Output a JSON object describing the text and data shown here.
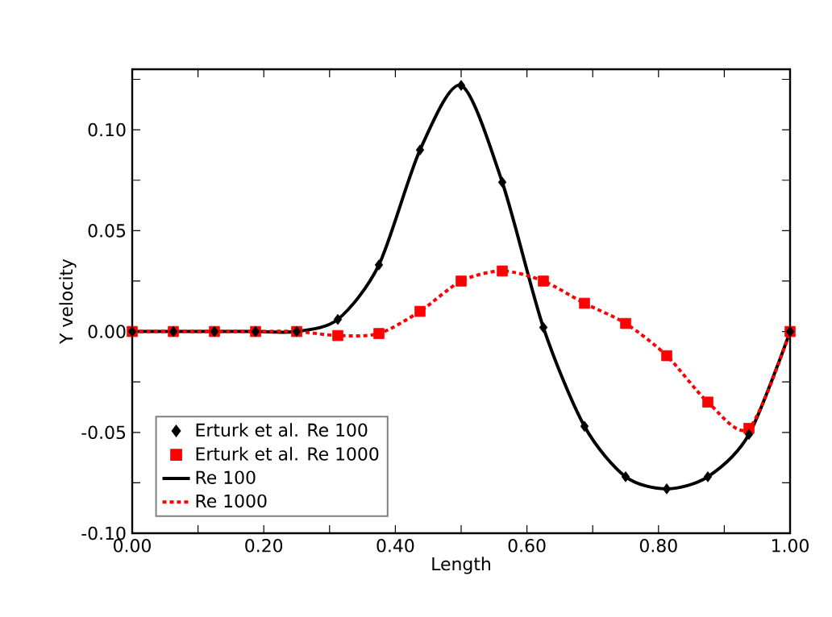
{
  "chart_data": {
    "type": "line",
    "xlabel": "Length",
    "ylabel": "Y velocity",
    "xlim": [
      0,
      1
    ],
    "ylim": [
      -0.1,
      0.13
    ],
    "xticks": [
      {
        "value": 0,
        "label": "0.00"
      },
      {
        "value": 0.1,
        "label": null
      },
      {
        "value": 0.2,
        "label": "0.20"
      },
      {
        "value": 0.3,
        "label": null
      },
      {
        "value": 0.4,
        "label": "0.40"
      },
      {
        "value": 0.5,
        "label": null
      },
      {
        "value": 0.6,
        "label": "0.60"
      },
      {
        "value": 0.7,
        "label": null
      },
      {
        "value": 0.8,
        "label": "0.80"
      },
      {
        "value": 0.9,
        "label": null
      },
      {
        "value": 1,
        "label": "1.00"
      }
    ],
    "yticks": [
      {
        "value": -0.1,
        "label": "-0.10"
      },
      {
        "value": -0.075,
        "label": null
      },
      {
        "value": -0.05,
        "label": "-0.05"
      },
      {
        "value": -0.025,
        "label": null
      },
      {
        "value": 0,
        "label": "0.00"
      },
      {
        "value": 0.025,
        "label": null
      },
      {
        "value": 0.05,
        "label": "0.05"
      },
      {
        "value": 0.075,
        "label": null
      },
      {
        "value": 0.1,
        "label": "0.10"
      },
      {
        "value": 0.125,
        "label": null
      }
    ],
    "legend": "bottom left",
    "grid": false,
    "series": [
      {
        "name": "Erturk et al. Re 100",
        "type": "scatter",
        "marker": "diamond",
        "color": "#000000",
        "x": [
          0,
          0.0625,
          0.125,
          0.1875,
          0.25,
          0.3125,
          0.375,
          0.4375,
          0.5,
          0.5625,
          0.625,
          0.6875,
          0.75,
          0.8125,
          0.875,
          0.9375,
          1
        ],
        "values": [
          0,
          0,
          0,
          0,
          0,
          0.006,
          0.033,
          0.09,
          0.122,
          0.074,
          0.002,
          -0.047,
          -0.072,
          -0.078,
          -0.072,
          -0.051,
          0
        ]
      },
      {
        "name": "Erturk et al. Re 1000",
        "type": "scatter",
        "marker": "square",
        "color": "#ff0000",
        "x": [
          0,
          0.0625,
          0.125,
          0.1875,
          0.25,
          0.3125,
          0.375,
          0.4375,
          0.5,
          0.5625,
          0.625,
          0.6875,
          0.75,
          0.8125,
          0.875,
          0.9375,
          1
        ],
        "values": [
          0,
          0,
          0,
          0,
          0,
          -0.002,
          -0.001,
          0.01,
          0.025,
          0.03,
          0.025,
          0.014,
          0.004,
          -0.012,
          -0.035,
          -0.048,
          0
        ]
      },
      {
        "name": "Re 100",
        "type": "line",
        "line_style": "solid",
        "color": "#000000",
        "x": [
          0,
          0.0625,
          0.125,
          0.1875,
          0.25,
          0.3125,
          0.375,
          0.4375,
          0.5,
          0.5625,
          0.625,
          0.6875,
          0.75,
          0.8125,
          0.875,
          0.9375,
          1
        ],
        "values": [
          0,
          0,
          0,
          0,
          0,
          0.006,
          0.033,
          0.09,
          0.122,
          0.074,
          0.002,
          -0.047,
          -0.072,
          -0.078,
          -0.072,
          -0.051,
          0
        ]
      },
      {
        "name": "Re 1000",
        "type": "line",
        "line_style": "dotted",
        "color": "#ff0000",
        "x": [
          0,
          0.0625,
          0.125,
          0.1875,
          0.25,
          0.3125,
          0.375,
          0.4375,
          0.5,
          0.5625,
          0.625,
          0.6875,
          0.75,
          0.8125,
          0.875,
          0.9375,
          1
        ],
        "values": [
          0,
          0,
          0,
          0,
          0,
          -0.002,
          -0.001,
          0.01,
          0.025,
          0.03,
          0.025,
          0.014,
          0.004,
          -0.012,
          -0.035,
          -0.048,
          0
        ]
      }
    ]
  }
}
